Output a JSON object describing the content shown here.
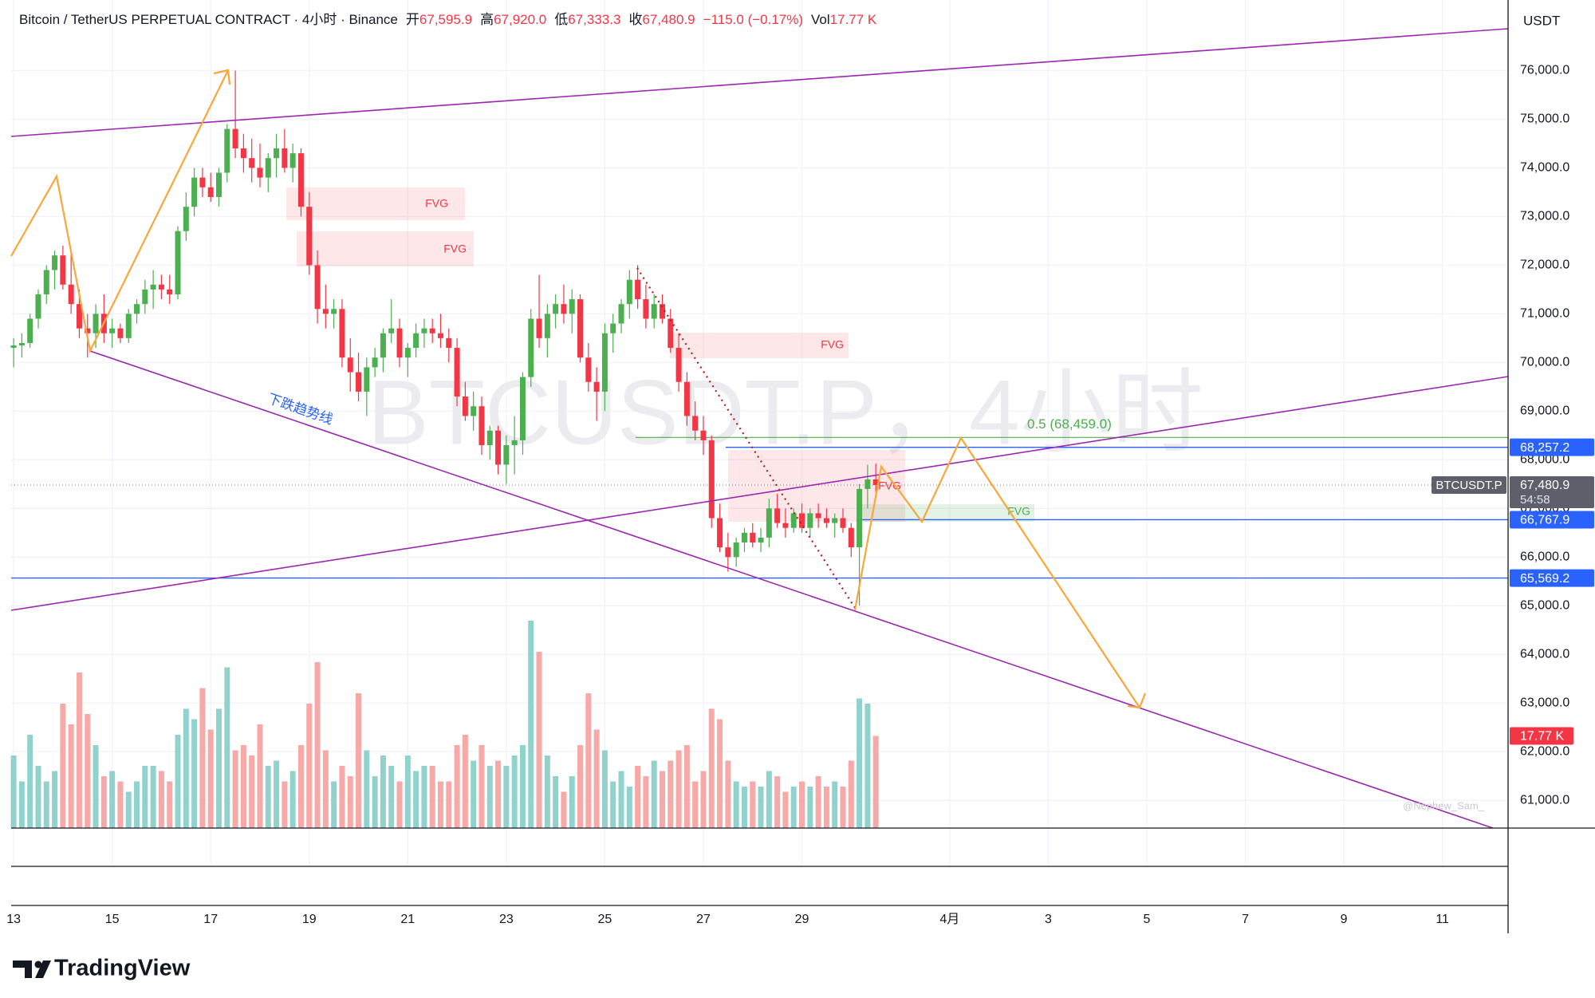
{
  "header": {
    "symbol": "Bitcoin / TetherUS PERPETUAL CONTRACT · 4小时 · Binance",
    "ohlc": [
      {
        "label": "开",
        "value": "67,595.9"
      },
      {
        "label": "高",
        "value": "67,920.0"
      },
      {
        "label": "低",
        "value": "67,333.3"
      },
      {
        "label": "收",
        "value": "67,480.9"
      }
    ],
    "change": "−115.0 (−0.17%)",
    "volume_label": "Vol",
    "volume": "17.77 K"
  },
  "brand": "TradingView",
  "chart_data": {
    "type": "candlestick",
    "currency": "USDT",
    "watermark": "BTCUSDT.P，4小时",
    "author": "@Nephew_Sam_",
    "up_color": "#4caf50",
    "down_color": "#f23645",
    "up_volume_color": "#92d2cc",
    "down_volume_color": "#f7a9a7",
    "grid": true,
    "xlim": [
      -0.3,
      182
    ],
    "xticks": [
      {
        "value": 0,
        "label": "13"
      },
      {
        "value": 12,
        "label": "15"
      },
      {
        "value": 24,
        "label": "17"
      },
      {
        "value": 36,
        "label": "19"
      },
      {
        "value": 48,
        "label": "21"
      },
      {
        "value": 60,
        "label": "23"
      },
      {
        "value": 72,
        "label": "25"
      },
      {
        "value": 84,
        "label": "27"
      },
      {
        "value": 96,
        "label": "29"
      },
      {
        "value": 114,
        "label": "4月"
      },
      {
        "value": 126,
        "label": "3"
      },
      {
        "value": 138,
        "label": "5"
      },
      {
        "value": 150,
        "label": "7"
      },
      {
        "value": 162,
        "label": "9"
      },
      {
        "value": 174,
        "label": "11"
      }
    ],
    "ylim": [
      60430,
      77450
    ],
    "yticks": [
      {
        "value": 61000,
        "label": "61,000.0"
      },
      {
        "value": 62000,
        "label": "62,000.0"
      },
      {
        "value": 63000,
        "label": "63,000.0"
      },
      {
        "value": 64000,
        "label": "64,000.0"
      },
      {
        "value": 65000,
        "label": "65,000.0"
      },
      {
        "value": 66000,
        "label": "66,000.0"
      },
      {
        "value": 67000,
        "label": "67,000.0"
      },
      {
        "value": 68000,
        "label": "68,000.0"
      },
      {
        "value": 69000,
        "label": "69,000.0"
      },
      {
        "value": 70000,
        "label": "70,000.0"
      },
      {
        "value": 71000,
        "label": "71,000.0"
      },
      {
        "value": 72000,
        "label": "72,000.0"
      },
      {
        "value": 73000,
        "label": "73,000.0"
      },
      {
        "value": 74000,
        "label": "74,000.0"
      },
      {
        "value": 75000,
        "label": "75,000.0"
      },
      {
        "value": 76000,
        "label": "76,000.0"
      }
    ],
    "candles": {
      "open": [
        70300,
        70350,
        70400,
        70900,
        71400,
        71900,
        72200,
        71600,
        71200,
        70700,
        70600,
        71000,
        70600,
        70700,
        70500,
        71000,
        71200,
        71500,
        71600,
        71500,
        71400,
        72700,
        73200,
        73800,
        73600,
        73400,
        73900,
        74800,
        74400,
        74200,
        74000,
        73800,
        74200,
        74400,
        74000,
        74300,
        73200,
        72000,
        71100,
        71000,
        71100,
        70100,
        69800,
        69400,
        69900,
        70100,
        70600,
        70700,
        70100,
        70300,
        70600,
        70700,
        70600,
        70500,
        70300,
        69300,
        68900,
        69100,
        68300,
        68600,
        67900,
        68300,
        68400,
        69700,
        70900,
        70500,
        71000,
        71200,
        71000,
        71300,
        70100,
        69600,
        69400,
        70600,
        70800,
        71200,
        71700,
        71300,
        70900,
        71200,
        70900,
        70300,
        69600,
        68900,
        68600,
        68400,
        66800,
        66200,
        66000,
        66300,
        66500,
        66300,
        66400,
        67000,
        66700,
        66600,
        66900,
        66600,
        66900,
        66800,
        66700,
        66800,
        66600,
        66200,
        67400,
        67595.9
      ],
      "high": [
        70500,
        70600,
        71000,
        71500,
        72000,
        72300,
        72400,
        72300,
        71500,
        71000,
        71200,
        71400,
        70900,
        70800,
        71100,
        71300,
        71700,
        71900,
        71800,
        71800,
        72800,
        73500,
        74000,
        74000,
        73900,
        74000,
        74900,
        76000,
        74700,
        74600,
        74500,
        74300,
        74700,
        74800,
        74500,
        74400,
        73500,
        72300,
        71600,
        71300,
        71300,
        70500,
        70200,
        70100,
        70300,
        70700,
        71300,
        70900,
        70400,
        70800,
        70900,
        70900,
        71000,
        70700,
        70500,
        69600,
        69400,
        69300,
        68700,
        68700,
        68500,
        68900,
        69800,
        71100,
        71800,
        71200,
        71400,
        71600,
        71500,
        71400,
        70400,
        69900,
        70800,
        71000,
        71300,
        71900,
        72000,
        71600,
        71400,
        71400,
        71100,
        70600,
        69800,
        69200,
        68900,
        68500,
        67100,
        66500,
        66400,
        66600,
        66700,
        66600,
        67200,
        67300,
        67000,
        67000,
        67100,
        67000,
        67100,
        67000,
        66900,
        67000,
        66700,
        67500,
        67900,
        67920
      ],
      "low": [
        69900,
        70100,
        70300,
        70700,
        71200,
        71500,
        71500,
        71000,
        70500,
        70100,
        70300,
        70400,
        70300,
        70400,
        70400,
        70800,
        71000,
        71100,
        71300,
        71200,
        71300,
        72500,
        73000,
        73400,
        73300,
        73200,
        73700,
        74200,
        73900,
        73700,
        73600,
        73500,
        73800,
        73900,
        73700,
        73000,
        71800,
        70800,
        70700,
        70700,
        69900,
        69400,
        69200,
        68900,
        69700,
        69800,
        70400,
        69900,
        69700,
        70100,
        70300,
        70400,
        70300,
        70000,
        69100,
        68800,
        68600,
        68100,
        68000,
        67700,
        67500,
        67700,
        68100,
        69500,
        70300,
        70100,
        70700,
        70800,
        70600,
        70000,
        69400,
        68800,
        69000,
        70200,
        70600,
        70900,
        71100,
        70700,
        70700,
        70800,
        70200,
        69400,
        68700,
        68400,
        68100,
        66600,
        66100,
        65700,
        65800,
        66100,
        66200,
        66100,
        66200,
        66600,
        66400,
        66500,
        66500,
        66400,
        66600,
        66600,
        66400,
        66500,
        66000,
        65000,
        67000,
        67333.3
      ],
      "close": [
        70350,
        70400,
        70900,
        71400,
        71900,
        72200,
        71600,
        71200,
        70700,
        70600,
        71000,
        70600,
        70700,
        70500,
        71000,
        71200,
        71500,
        71600,
        71500,
        71400,
        72700,
        73200,
        73800,
        73600,
        73400,
        73900,
        74800,
        74400,
        74200,
        74000,
        73800,
        74200,
        74400,
        74000,
        74300,
        73200,
        72000,
        71100,
        71000,
        71100,
        70100,
        69800,
        69400,
        69900,
        70100,
        70600,
        70700,
        70100,
        70300,
        70600,
        70700,
        70600,
        70500,
        70300,
        69300,
        68900,
        69100,
        68300,
        68600,
        67900,
        68300,
        68400,
        69700,
        70900,
        70500,
        71000,
        71200,
        71000,
        71300,
        70100,
        69600,
        69400,
        70600,
        70800,
        71200,
        71700,
        71300,
        70900,
        71200,
        70900,
        70300,
        69600,
        68900,
        68600,
        68400,
        66800,
        66200,
        66000,
        66300,
        66500,
        66300,
        66400,
        67000,
        66700,
        66600,
        66900,
        66600,
        66900,
        66800,
        66700,
        66800,
        66600,
        66200,
        67400,
        67595.9,
        67480.9
      ],
      "volume": [
        14,
        9,
        18,
        12,
        9,
        11,
        24,
        20,
        30,
        22,
        16,
        10,
        11,
        9,
        7,
        9,
        12,
        12,
        11,
        9,
        18,
        23,
        21,
        27,
        19,
        23,
        31,
        15,
        16,
        14,
        20,
        12,
        13,
        9,
        11,
        16,
        24,
        32,
        15,
        9,
        12,
        10,
        26,
        15,
        10,
        14,
        12,
        9,
        14,
        11,
        12,
        12,
        9,
        9,
        16,
        18,
        13,
        16,
        12,
        13,
        12,
        14,
        16,
        40,
        34,
        14,
        10,
        7,
        10,
        16,
        26,
        19,
        15,
        9,
        11,
        8,
        12,
        10,
        13,
        11,
        13,
        15,
        16,
        9,
        11,
        23,
        21,
        13,
        9,
        8,
        9,
        8,
        11,
        10,
        7,
        8,
        9,
        8,
        10,
        8,
        9,
        8,
        13,
        25,
        24,
        17.77
      ]
    },
    "last_price_label": "67,480.9",
    "symbol": "BTCUSDT.P",
    "countdown": "54:58",
    "last_volume_label": "17.77 K",
    "levels": [
      {
        "value": 68257.2,
        "label": "68,257.2",
        "color": "#2962ff"
      },
      {
        "value": 66767.9,
        "label": "66,767.9",
        "color": "#2962ff"
      },
      {
        "value": 65569.2,
        "label": "65,569.2",
        "color": "#2962ff"
      }
    ],
    "fib": {
      "value": 68459.0,
      "label": "0.5 (68,459.0)",
      "color": "#4caf50"
    },
    "annotations": {
      "fvg": [
        "FVG",
        "FVG",
        "FVG",
        "FVG",
        "FVG"
      ],
      "trendline": "下跌趋势线"
    }
  }
}
